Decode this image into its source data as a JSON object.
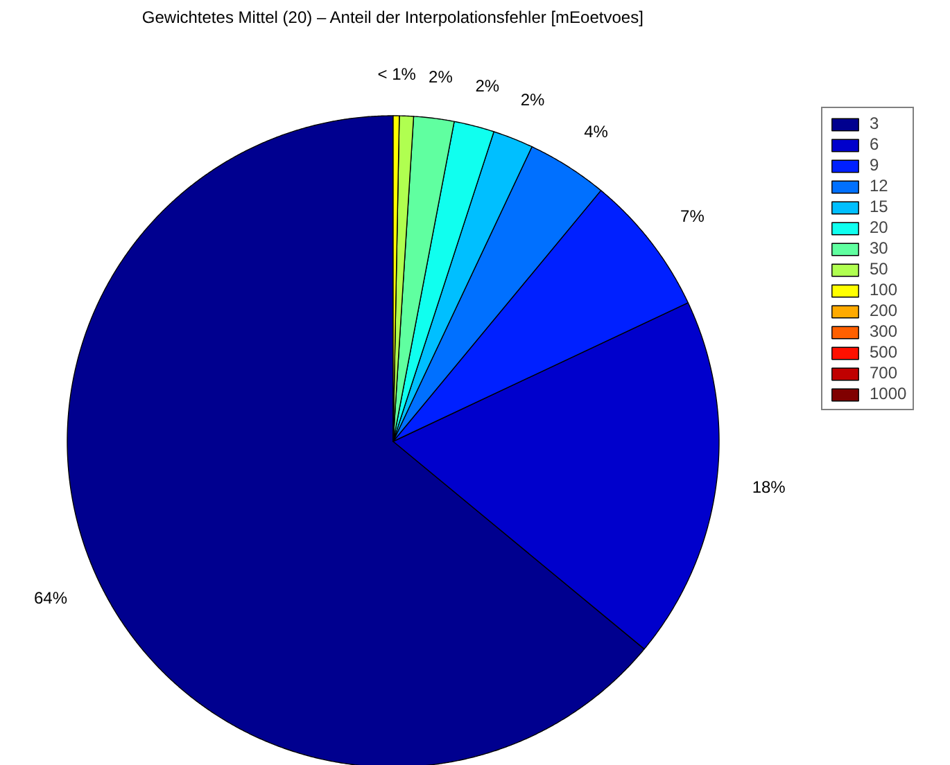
{
  "chart_data": {
    "type": "pie",
    "title": "Gewichtetes Mittel (20) – Anteil der Interpolationsfehler [mEoetvoes]",
    "categories": [
      "3",
      "6",
      "9",
      "12",
      "15",
      "20",
      "30",
      "50",
      "100",
      "200",
      "300",
      "500",
      "700",
      "1000"
    ],
    "values": [
      64,
      18,
      7,
      4,
      2,
      2,
      2,
      0.7,
      0.3,
      0,
      0,
      0,
      0,
      0
    ],
    "colors": [
      "#00008f",
      "#0000cc",
      "#0020ff",
      "#0070ff",
      "#00bfff",
      "#10ffef",
      "#60ffa0",
      "#b0ff50",
      "#ffff00",
      "#ffaa00",
      "#ff6000",
      "#ff1000",
      "#c00000",
      "#800000"
    ],
    "value_labels": [
      "64%",
      "18%",
      "7%",
      "4%",
      "2%",
      "2%",
      "2%",
      null,
      "< 1%",
      null,
      null,
      null,
      null,
      null
    ],
    "legend": "right"
  }
}
